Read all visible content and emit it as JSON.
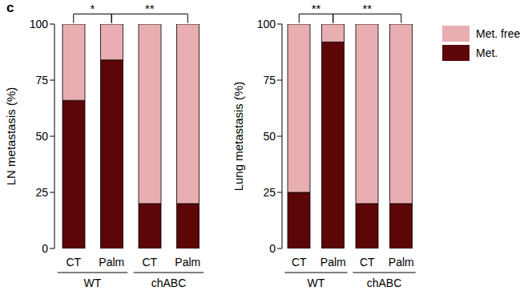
{
  "panel_label": "c",
  "chart_data": [
    {
      "type": "bar",
      "stacked": true,
      "ylabel": "LN metastasis (%)",
      "categories": [
        "CT",
        "Palm",
        "CT",
        "Palm"
      ],
      "groups": [
        "WT",
        "WT",
        "chABC",
        "chABC"
      ],
      "series": [
        {
          "name": "Met. free",
          "color": "#e8aeb1",
          "values": [
            34,
            16,
            80,
            80
          ]
        },
        {
          "name": "Met.",
          "color": "#5c0608",
          "values": [
            66,
            84,
            20,
            20
          ]
        }
      ],
      "ylim": [
        0,
        100
      ],
      "yticks": [
        0,
        25,
        50,
        75,
        100
      ],
      "annotations": [
        {
          "text": "*",
          "from": 0,
          "to": 1
        },
        {
          "text": "**",
          "from": 1,
          "to": 3
        }
      ]
    },
    {
      "type": "bar",
      "stacked": true,
      "ylabel": "Lung metastasis (%)",
      "categories": [
        "CT",
        "Palm",
        "CT",
        "Palm"
      ],
      "groups": [
        "WT",
        "WT",
        "chABC",
        "chABC"
      ],
      "series": [
        {
          "name": "Met. free",
          "color": "#e8aeb1",
          "values": [
            75,
            8,
            80,
            80
          ]
        },
        {
          "name": "Met.",
          "color": "#5c0608",
          "values": [
            25,
            92,
            20,
            20
          ]
        }
      ],
      "ylim": [
        0,
        100
      ],
      "yticks": [
        0,
        25,
        50,
        75,
        100
      ],
      "annotations": [
        {
          "text": "**",
          "from": 0,
          "to": 1
        },
        {
          "text": "**",
          "from": 1,
          "to": 3
        }
      ],
      "legend": "right"
    }
  ]
}
